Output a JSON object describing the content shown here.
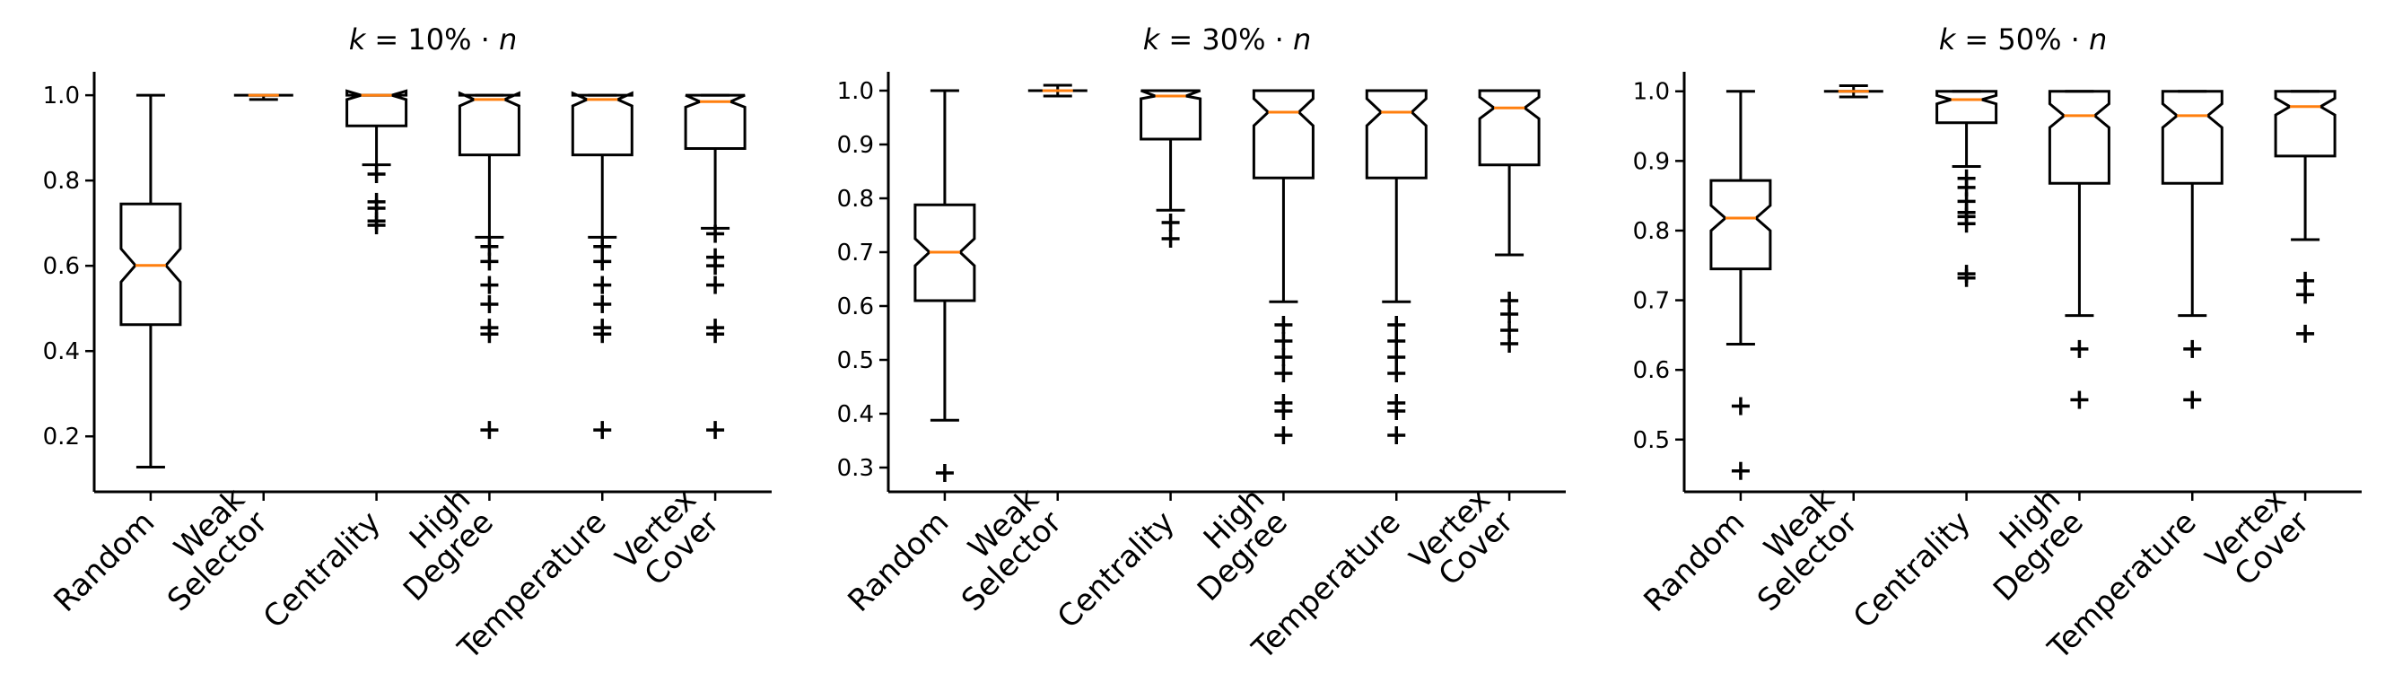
{
  "chart_data": [
    {
      "type": "box",
      "title": {
        "k": "k",
        "rest": " = 10% · ",
        "n": "n"
      },
      "ylim": [
        0.07,
        1.055
      ],
      "yticks": [
        "0.2",
        "0.4",
        "0.6",
        "0.8",
        "1.0"
      ],
      "categories": [
        [
          "Random"
        ],
        [
          "Weak",
          "Selector"
        ],
        [
          "Centrality"
        ],
        [
          "High",
          "Degree"
        ],
        [
          "Temperature"
        ],
        [
          "Vertex",
          "Cover"
        ]
      ],
      "boxes": [
        {
          "q1": 0.462,
          "median": 0.601,
          "q3": 0.745,
          "notch_lo": 0.562,
          "notch_hi": 0.64,
          "whisker_lo": 0.128,
          "whisker_hi": 1.0,
          "fliers": []
        },
        {
          "q1": 1.0,
          "median": 1.0,
          "q3": 1.0,
          "notch_lo": 1.0,
          "notch_hi": 1.0,
          "whisker_lo": 0.99,
          "whisker_hi": 1.0,
          "fliers": []
        },
        {
          "q1": 0.928,
          "median": 1.0,
          "q3": 1.0,
          "notch_lo": 0.99,
          "notch_hi": 1.01,
          "whisker_lo": 0.837,
          "whisker_hi": 1.0,
          "fliers": [
            0.815,
            0.75,
            0.735,
            0.705,
            0.695
          ]
        },
        {
          "q1": 0.86,
          "median": 0.99,
          "q3": 1.0,
          "notch_lo": 0.975,
          "notch_hi": 1.005,
          "whisker_lo": 0.667,
          "whisker_hi": 1.0,
          "fliers": [
            0.645,
            0.61,
            0.555,
            0.51,
            0.455,
            0.44,
            0.215
          ]
        },
        {
          "q1": 0.86,
          "median": 0.99,
          "q3": 1.0,
          "notch_lo": 0.975,
          "notch_hi": 1.005,
          "whisker_lo": 0.667,
          "whisker_hi": 1.0,
          "fliers": [
            0.645,
            0.61,
            0.555,
            0.51,
            0.455,
            0.44,
            0.215
          ]
        },
        {
          "q1": 0.875,
          "median": 0.985,
          "q3": 1.0,
          "notch_lo": 0.972,
          "notch_hi": 1.0,
          "whisker_lo": 0.688,
          "whisker_hi": 1.0,
          "fliers": [
            0.675,
            0.62,
            0.6,
            0.555,
            0.455,
            0.44,
            0.215
          ]
        }
      ]
    },
    {
      "type": "box",
      "title": {
        "k": "k",
        "rest": " = 30% · ",
        "n": "n"
      },
      "ylim": [
        0.255,
        1.035
      ],
      "yticks": [
        "0.3",
        "0.4",
        "0.5",
        "0.6",
        "0.7",
        "0.8",
        "0.9",
        "1.0"
      ],
      "categories": [
        [
          "Random"
        ],
        [
          "Weak",
          "Selector"
        ],
        [
          "Centrality"
        ],
        [
          "High",
          "Degree"
        ],
        [
          "Temperature"
        ],
        [
          "Vertex",
          "Cover"
        ]
      ],
      "boxes": [
        {
          "q1": 0.61,
          "median": 0.7,
          "q3": 0.788,
          "notch_lo": 0.675,
          "notch_hi": 0.725,
          "whisker_lo": 0.388,
          "whisker_hi": 1.0,
          "fliers": [
            0.29
          ]
        },
        {
          "q1": 1.0,
          "median": 1.0,
          "q3": 1.0,
          "notch_lo": 1.0,
          "notch_hi": 1.0,
          "whisker_lo": 0.99,
          "whisker_hi": 1.01,
          "fliers": []
        },
        {
          "q1": 0.91,
          "median": 0.99,
          "q3": 1.0,
          "notch_lo": 0.985,
          "notch_hi": 1.0,
          "whisker_lo": 0.778,
          "whisker_hi": 1.0,
          "fliers": [
            0.755,
            0.725
          ]
        },
        {
          "q1": 0.838,
          "median": 0.96,
          "q3": 1.0,
          "notch_lo": 0.935,
          "notch_hi": 0.985,
          "whisker_lo": 0.608,
          "whisker_hi": 1.0,
          "fliers": [
            0.565,
            0.535,
            0.505,
            0.475,
            0.42,
            0.405,
            0.36
          ]
        },
        {
          "q1": 0.838,
          "median": 0.96,
          "q3": 1.0,
          "notch_lo": 0.935,
          "notch_hi": 0.985,
          "whisker_lo": 0.608,
          "whisker_hi": 1.0,
          "fliers": [
            0.565,
            0.535,
            0.505,
            0.475,
            0.42,
            0.405,
            0.36
          ]
        },
        {
          "q1": 0.862,
          "median": 0.968,
          "q3": 1.0,
          "notch_lo": 0.948,
          "notch_hi": 0.988,
          "whisker_lo": 0.695,
          "whisker_hi": 1.0,
          "fliers": [
            0.61,
            0.585,
            0.555,
            0.53
          ]
        }
      ]
    },
    {
      "type": "box",
      "title": {
        "k": "k",
        "rest": " = 50% · ",
        "n": "n"
      },
      "ylim": [
        0.425,
        1.028
      ],
      "yticks": [
        "0.5",
        "0.6",
        "0.7",
        "0.8",
        "0.9",
        "1.0"
      ],
      "categories": [
        [
          "Random"
        ],
        [
          "Weak",
          "Selector"
        ],
        [
          "Centrality"
        ],
        [
          "High",
          "Degree"
        ],
        [
          "Temperature"
        ],
        [
          "Vertex",
          "Cover"
        ]
      ],
      "boxes": [
        {
          "q1": 0.745,
          "median": 0.818,
          "q3": 0.872,
          "notch_lo": 0.8,
          "notch_hi": 0.836,
          "whisker_lo": 0.637,
          "whisker_hi": 1.0,
          "fliers": [
            0.548,
            0.455
          ]
        },
        {
          "q1": 1.0,
          "median": 1.0,
          "q3": 1.0,
          "notch_lo": 1.0,
          "notch_hi": 1.0,
          "whisker_lo": 0.992,
          "whisker_hi": 1.008,
          "fliers": []
        },
        {
          "q1": 0.955,
          "median": 0.988,
          "q3": 1.0,
          "notch_lo": 0.982,
          "notch_hi": 0.994,
          "whisker_lo": 0.892,
          "whisker_hi": 1.0,
          "fliers": [
            0.875,
            0.862,
            0.842,
            0.826,
            0.82,
            0.81,
            0.738,
            0.732
          ]
        },
        {
          "q1": 0.868,
          "median": 0.965,
          "q3": 1.0,
          "notch_lo": 0.948,
          "notch_hi": 0.982,
          "whisker_lo": 0.678,
          "whisker_hi": 1.0,
          "fliers": [
            0.63,
            0.557
          ]
        },
        {
          "q1": 0.868,
          "median": 0.965,
          "q3": 1.0,
          "notch_lo": 0.948,
          "notch_hi": 0.982,
          "whisker_lo": 0.678,
          "whisker_hi": 1.0,
          "fliers": [
            0.63,
            0.557
          ]
        },
        {
          "q1": 0.907,
          "median": 0.978,
          "q3": 1.0,
          "notch_lo": 0.966,
          "notch_hi": 0.99,
          "whisker_lo": 0.787,
          "whisker_hi": 1.0,
          "fliers": [
            0.728,
            0.708,
            0.652
          ]
        }
      ]
    }
  ]
}
